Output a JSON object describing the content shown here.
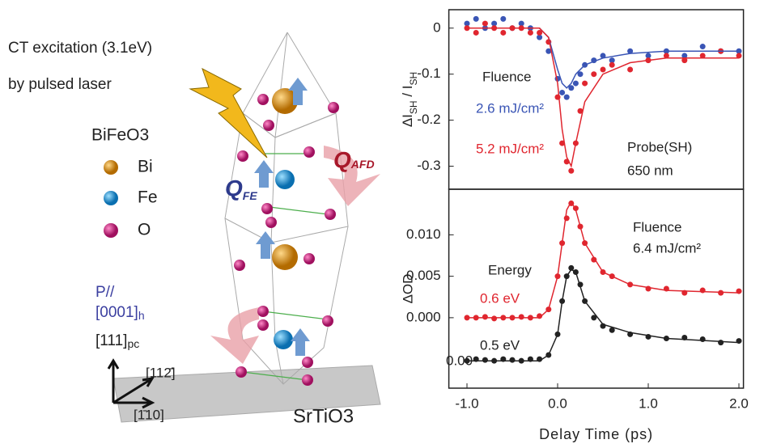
{
  "diagram": {
    "excitation": "CT excitation (3.1eV)",
    "laser": "by pulsed laser",
    "material": "BiFeO3",
    "legend": [
      "Bi",
      "Fe",
      "O"
    ],
    "q_fe": "Q",
    "q_fe_sub": "FE",
    "q_afd": "Q",
    "q_afd_sub": "AFD",
    "polar": "P//",
    "hex_dir": "[0001]",
    "hex_sub": "h",
    "pc_dir": "[111]",
    "pc_sub": "pc",
    "dir_a": "[112̄]",
    "dir_b": "[1̄10]",
    "substrate": "SrTiO3"
  },
  "chart_data": [
    {
      "type": "scatter",
      "ylabel_parts": [
        "ΔI",
        "SH",
        " / I",
        "SH"
      ],
      "xlim": [
        -1.2,
        2.05
      ],
      "ylim": [
        -0.35,
        0.04
      ],
      "yticks": [
        0,
        -0.1,
        -0.2,
        -0.3
      ],
      "series": [
        {
          "mode": "markers",
          "color": "#3a55b5",
          "x": [
            -1.0,
            -0.9,
            -0.8,
            -0.7,
            -0.6,
            -0.5,
            -0.4,
            -0.3,
            -0.2,
            -0.1,
            0.0,
            0.05,
            0.1,
            0.15,
            0.2,
            0.25,
            0.3,
            0.4,
            0.5,
            0.6,
            0.8,
            1.0,
            1.2,
            1.4,
            1.6,
            1.8,
            2.0
          ],
          "values": [
            0.01,
            0.02,
            0.0,
            0.01,
            0.02,
            0.0,
            0.01,
            0.0,
            -0.02,
            -0.05,
            -0.11,
            -0.14,
            -0.15,
            -0.13,
            -0.12,
            -0.1,
            -0.08,
            -0.07,
            -0.06,
            -0.07,
            -0.05,
            -0.06,
            -0.05,
            -0.06,
            -0.04,
            -0.05,
            -0.05
          ]
        },
        {
          "mode": "markers",
          "color": "#e0262f",
          "x": [
            -1.0,
            -0.9,
            -0.8,
            -0.7,
            -0.6,
            -0.5,
            -0.4,
            -0.3,
            -0.2,
            -0.1,
            0.0,
            0.05,
            0.1,
            0.15,
            0.2,
            0.25,
            0.3,
            0.4,
            0.5,
            0.6,
            0.8,
            1.0,
            1.2,
            1.4,
            1.6,
            1.8,
            2.0
          ],
          "values": [
            0.0,
            -0.01,
            0.01,
            0.0,
            -0.01,
            0.0,
            0.0,
            -0.01,
            -0.01,
            -0.03,
            -0.15,
            -0.25,
            -0.29,
            -0.31,
            -0.25,
            -0.18,
            -0.12,
            -0.1,
            -0.09,
            -0.08,
            -0.09,
            -0.07,
            -0.06,
            -0.07,
            -0.06,
            -0.05,
            -0.06
          ]
        },
        {
          "mode": "line",
          "color": "#3a55b5",
          "x": [
            -1.0,
            -0.2,
            -0.1,
            0.0,
            0.05,
            0.1,
            0.15,
            0.2,
            0.3,
            0.5,
            0.8,
            1.2,
            2.0
          ],
          "values": [
            0,
            0,
            -0.02,
            -0.09,
            -0.12,
            -0.13,
            -0.12,
            -0.1,
            -0.08,
            -0.065,
            -0.055,
            -0.05,
            -0.05
          ]
        },
        {
          "mode": "line",
          "color": "#e0262f",
          "x": [
            -1.0,
            -0.2,
            -0.1,
            0.0,
            0.05,
            0.1,
            0.15,
            0.2,
            0.3,
            0.5,
            0.8,
            1.2,
            2.0
          ],
          "values": [
            0,
            0,
            -0.02,
            -0.12,
            -0.22,
            -0.28,
            -0.3,
            -0.25,
            -0.16,
            -0.1,
            -0.075,
            -0.065,
            -0.065
          ]
        }
      ],
      "annotations": [
        {
          "text": "Fluence",
          "color": "#222"
        },
        {
          "text": "2.6 mJ/cm²",
          "color": "#3a55b5"
        },
        {
          "text": "5.2 mJ/cm²",
          "color": "#e0262f"
        },
        {
          "text": "Probe(SH)",
          "color": "#222"
        },
        {
          "text": "650 nm",
          "color": "#222"
        }
      ]
    },
    {
      "type": "scatter",
      "ylabel": "ΔOD",
      "xlabel": "Delay Time (ps)",
      "xlim": [
        -1.2,
        2.05
      ],
      "ylim": [
        -0.0085,
        0.0155
      ],
      "xticks": [
        {
          "value": -1,
          "label": "-1.0"
        },
        {
          "value": 0,
          "label": "0.0"
        },
        {
          "value": 1,
          "label": "1.0"
        },
        {
          "value": 2,
          "label": "2.0"
        }
      ],
      "yticks": [
        {
          "value": 0.01,
          "label": "0.010"
        },
        {
          "value": 0.005,
          "label": "0.005"
        },
        {
          "value": 0,
          "label": "0.000"
        }
      ],
      "series": [
        {
          "mode": "markers",
          "color": "#e0262f",
          "x": [
            -1.0,
            -0.9,
            -0.8,
            -0.7,
            -0.6,
            -0.5,
            -0.4,
            -0.3,
            -0.2,
            -0.1,
            0.0,
            0.05,
            0.1,
            0.15,
            0.2,
            0.25,
            0.3,
            0.4,
            0.5,
            0.6,
            0.8,
            1.0,
            1.2,
            1.4,
            1.6,
            1.8,
            2.0
          ],
          "values": [
            0.0,
            0.0,
            0.0001,
            -0.0001,
            0.0,
            0.0,
            0.0001,
            0.0,
            0.0002,
            0.001,
            0.005,
            0.009,
            0.012,
            0.0138,
            0.0132,
            0.011,
            0.009,
            0.007,
            0.0055,
            0.005,
            0.004,
            0.0035,
            0.0035,
            0.003,
            0.0033,
            0.003,
            0.0032
          ]
        },
        {
          "mode": "markers",
          "color": "#222222",
          "x": [
            -1.0,
            -0.9,
            -0.8,
            -0.7,
            -0.6,
            -0.5,
            -0.4,
            -0.3,
            -0.2,
            -0.1,
            0.0,
            0.05,
            0.1,
            0.15,
            0.2,
            0.25,
            0.3,
            0.4,
            0.5,
            0.6,
            0.8,
            1.0,
            1.2,
            1.4,
            1.6,
            1.8,
            2.0
          ],
          "values": [
            -0.0052,
            -0.005,
            -0.0051,
            -0.0052,
            -0.005,
            -0.0051,
            -0.0052,
            -0.005,
            -0.005,
            -0.0045,
            -0.002,
            0.002,
            0.005,
            0.006,
            0.0055,
            0.004,
            0.002,
            0.0,
            -0.001,
            -0.0015,
            -0.002,
            -0.0023,
            -0.0025,
            -0.0024,
            -0.0026,
            -0.003,
            -0.0028
          ]
        },
        {
          "mode": "line",
          "color": "#e0262f",
          "x": [
            -1.0,
            -0.2,
            -0.1,
            0.0,
            0.05,
            0.1,
            0.15,
            0.2,
            0.3,
            0.5,
            0.8,
            1.2,
            2.0
          ],
          "values": [
            0,
            0,
            0.001,
            0.005,
            0.009,
            0.013,
            0.014,
            0.013,
            0.009,
            0.0055,
            0.004,
            0.0033,
            0.003
          ]
        },
        {
          "mode": "line",
          "color": "#222222",
          "x": [
            -1.0,
            -0.2,
            -0.1,
            0.0,
            0.05,
            0.1,
            0.15,
            0.2,
            0.3,
            0.5,
            0.8,
            1.2,
            2.0
          ],
          "values": [
            -0.0052,
            -0.0052,
            -0.0045,
            -0.002,
            0.002,
            0.005,
            0.0058,
            0.0055,
            0.002,
            -0.0008,
            -0.0018,
            -0.0025,
            -0.003
          ]
        }
      ],
      "annotations": [
        {
          "text": "Fluence",
          "color": "#222"
        },
        {
          "text": "6.4 mJ/cm²",
          "color": "#222"
        },
        {
          "text": "Energy",
          "color": "#222"
        },
        {
          "text": "0.6 eV",
          "color": "#e0262f"
        },
        {
          "text": "0.5 eV",
          "color": "#222"
        },
        {
          "text": "0.00",
          "color": "#222"
        }
      ]
    }
  ]
}
